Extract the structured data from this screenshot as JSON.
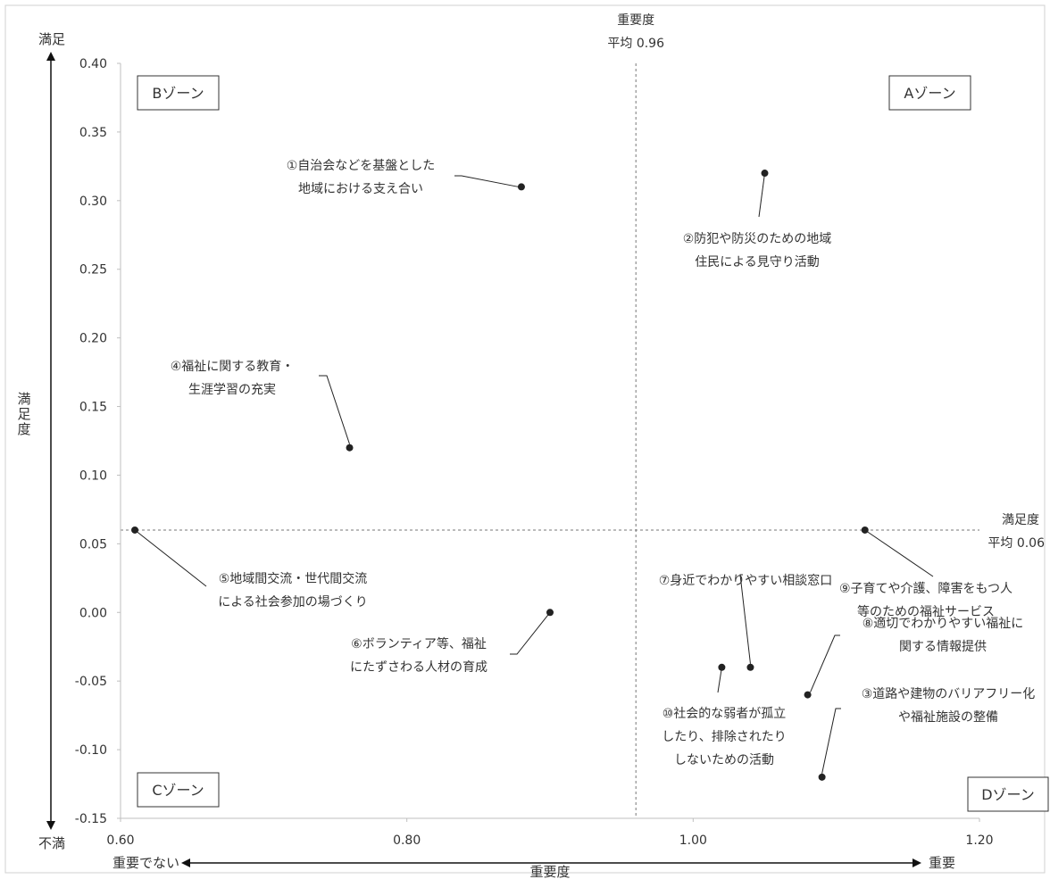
{
  "chart_data": {
    "type": "scatter",
    "xlabel": "重要度",
    "ylabel": "満足度",
    "xlim": [
      0.6,
      1.2
    ],
    "ylim": [
      -0.15,
      0.4
    ],
    "x_ticks": [
      "0.60",
      "0.80",
      "1.00",
      "1.20"
    ],
    "y_ticks": [
      "0.40",
      "0.35",
      "0.30",
      "0.25",
      "0.20",
      "0.15",
      "0.10",
      "0.05",
      "0.00",
      "-0.05",
      "-0.10",
      "-0.15"
    ],
    "x_avg": {
      "value": 0.96,
      "label_line1": "重要度",
      "label_line2": "平均 0.96"
    },
    "y_avg": {
      "value": 0.06,
      "label_line1": "満足度",
      "label_line2": "平均 0.06"
    },
    "axis_words": {
      "top": "満足",
      "bottom": "不満",
      "left": "重要でない",
      "right": "重要"
    },
    "zones": [
      {
        "id": "B",
        "label": "Bゾーン",
        "pos": "top-left"
      },
      {
        "id": "A",
        "label": "Aゾーン",
        "pos": "top-right"
      },
      {
        "id": "C",
        "label": "Cゾーン",
        "pos": "bottom-left"
      },
      {
        "id": "D",
        "label": "Dゾーン",
        "pos": "bottom-right"
      }
    ],
    "points": [
      {
        "id": 1,
        "x": 0.88,
        "y": 0.31,
        "lines": [
          "①自治会などを基盤とした",
          "地域における支え合い"
        ]
      },
      {
        "id": 2,
        "x": 1.05,
        "y": 0.32,
        "lines": [
          "②防犯や防災のための地域",
          "住民による見守り活動"
        ]
      },
      {
        "id": 3,
        "x": 1.09,
        "y": -0.12,
        "lines": [
          "③道路や建物のバリアフリー化",
          "や福祉施設の整備"
        ]
      },
      {
        "id": 4,
        "x": 0.76,
        "y": 0.12,
        "lines": [
          "④福祉に関する教育・",
          "生涯学習の充実"
        ]
      },
      {
        "id": 5,
        "x": 0.61,
        "y": 0.06,
        "lines": [
          "⑤地域間交流・世代間交流",
          "による社会参加の場づくり"
        ]
      },
      {
        "id": 6,
        "x": 0.9,
        "y": 0.0,
        "lines": [
          "⑥ボランティア等、福祉",
          "にたずさわる人材の育成"
        ]
      },
      {
        "id": 7,
        "x": 1.04,
        "y": -0.04,
        "lines": [
          "⑦身近でわかりやすい相談窓口"
        ]
      },
      {
        "id": 8,
        "x": 1.08,
        "y": -0.06,
        "lines": [
          "⑧適切でわかりやすい福祉に",
          "関する情報提供"
        ]
      },
      {
        "id": 9,
        "x": 1.12,
        "y": 0.06,
        "lines": [
          "⑨子育てや介護、障害をもつ人",
          "等のための福祉サービス"
        ]
      },
      {
        "id": 10,
        "x": 1.02,
        "y": -0.04,
        "lines": [
          "⑩社会的な弱者が孤立",
          "したり、排除されたり",
          "しないための活動"
        ]
      }
    ]
  }
}
